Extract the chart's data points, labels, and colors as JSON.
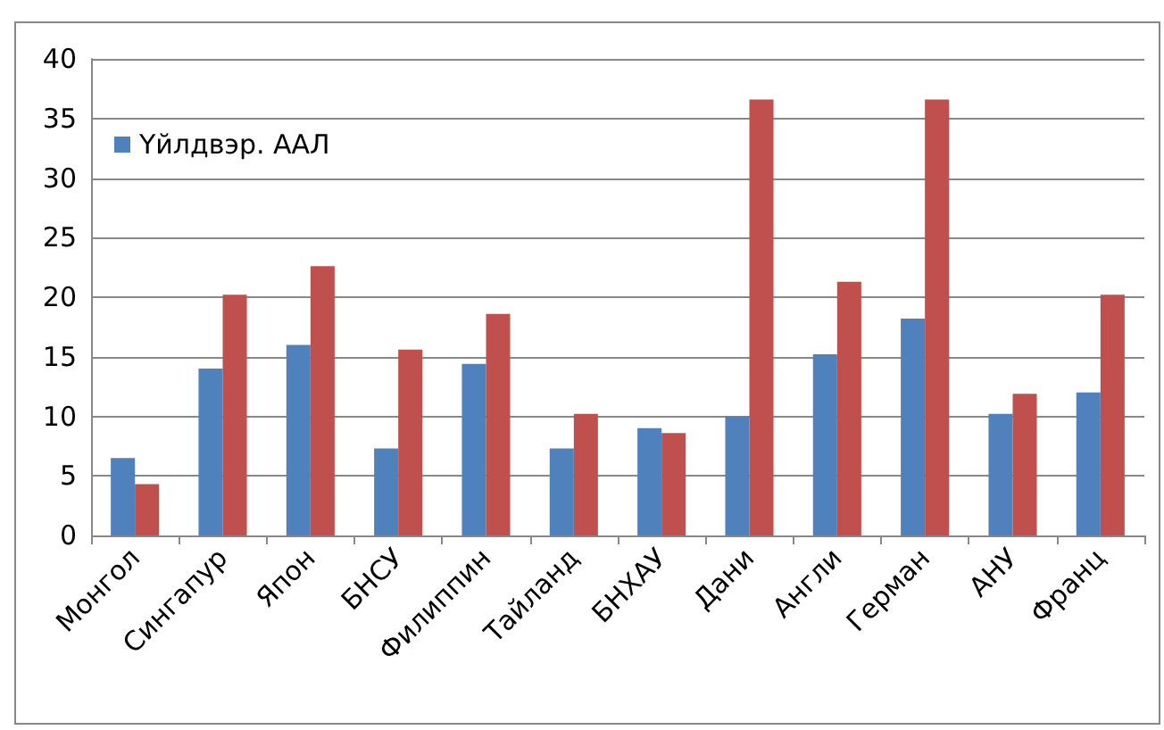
{
  "chart_data": {
    "type": "bar",
    "categories": [
      "Монгол",
      "Сингапур",
      "Япон",
      "БНСУ",
      "Филиппин",
      "Тайланд",
      "БНХАУ",
      "Дани",
      "Англи",
      "Герман",
      "АНУ",
      "Франц"
    ],
    "series": [
      {
        "name": "Үйлдвэр. ААЛ",
        "color": "#4f81bd",
        "values": [
          6.5,
          14,
          16,
          7.3,
          14.4,
          7.3,
          9,
          10,
          15.2,
          18.2,
          10.2,
          12
        ]
      },
      {
        "color": "#c0504d",
        "values": [
          4.3,
          20.2,
          22.6,
          15.6,
          18.6,
          10.2,
          8.6,
          36.6,
          21.3,
          36.6,
          11.9,
          20.2
        ]
      }
    ],
    "ylim": [
      0,
      40
    ],
    "yticks": [
      0,
      5,
      10,
      15,
      20,
      25,
      30,
      35,
      40
    ],
    "grid": "y",
    "legend": "top left"
  }
}
